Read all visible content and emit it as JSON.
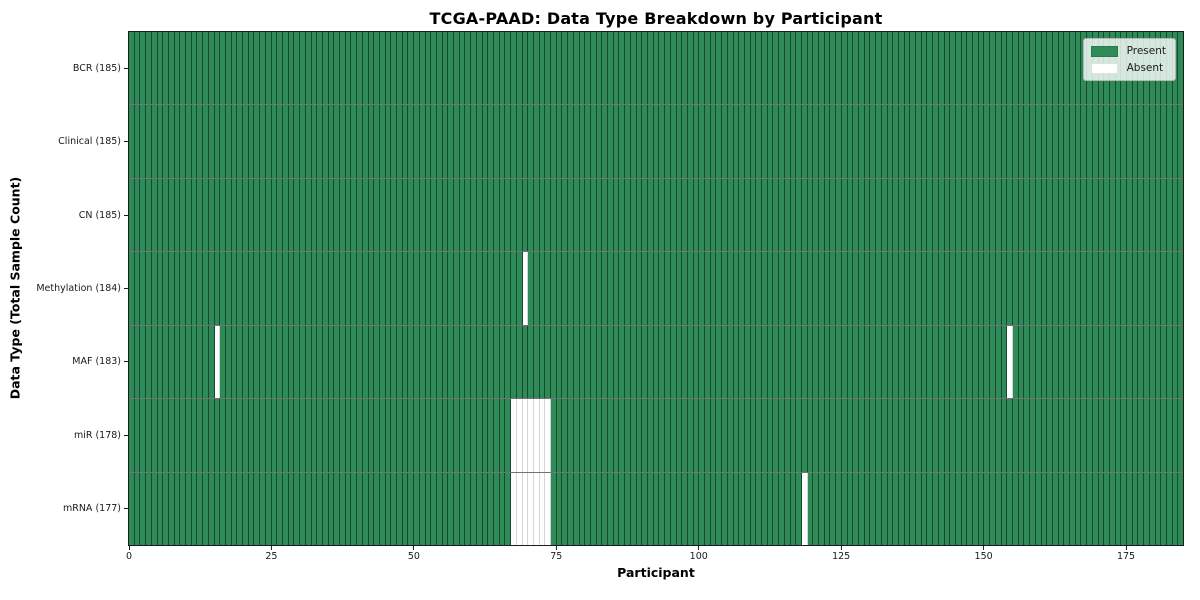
{
  "chart_data": {
    "type": "heatmap",
    "title": "TCGA-PAAD: Data Type Breakdown by Participant",
    "xlabel": "Participant",
    "ylabel": "Data Type (Total Sample Count)",
    "n_participants": 185,
    "xlim": [
      0,
      185
    ],
    "x_ticks": [
      0,
      25,
      50,
      75,
      100,
      125,
      150,
      175
    ],
    "grid": false,
    "rows": [
      {
        "data_type": "BCR",
        "label": "BCR (185)",
        "total": 185,
        "absent_participants": []
      },
      {
        "data_type": "Clinical",
        "label": "Clinical (185)",
        "total": 185,
        "absent_participants": []
      },
      {
        "data_type": "CN",
        "label": "CN (185)",
        "total": 185,
        "absent_participants": []
      },
      {
        "data_type": "Methylation",
        "label": "Methylation (184)",
        "total": 184,
        "absent_participants": [
          69
        ]
      },
      {
        "data_type": "MAF",
        "label": "MAF (183)",
        "total": 183,
        "absent_participants": [
          15,
          154
        ]
      },
      {
        "data_type": "miR",
        "label": "miR (178)",
        "total": 178,
        "absent_participants": [
          67,
          68,
          69,
          70,
          71,
          72,
          73
        ]
      },
      {
        "data_type": "mRNA",
        "label": "mRNA (177)",
        "total": 177,
        "absent_participants": [
          67,
          68,
          69,
          70,
          71,
          72,
          73,
          118
        ]
      }
    ],
    "legend": {
      "position": "upper right",
      "entries": [
        {
          "label": "Present",
          "color": "#2e8b57"
        },
        {
          "label": "Absent",
          "color": "#ffffff"
        }
      ]
    },
    "colors": {
      "present": "#2e8b57",
      "absent": "#ffffff",
      "cell_border_on_green": "rgba(0,0,0,0.48)",
      "cell_border_on_white": "rgba(0,0,0,0.16)",
      "spine": "#1c1c1c"
    }
  }
}
